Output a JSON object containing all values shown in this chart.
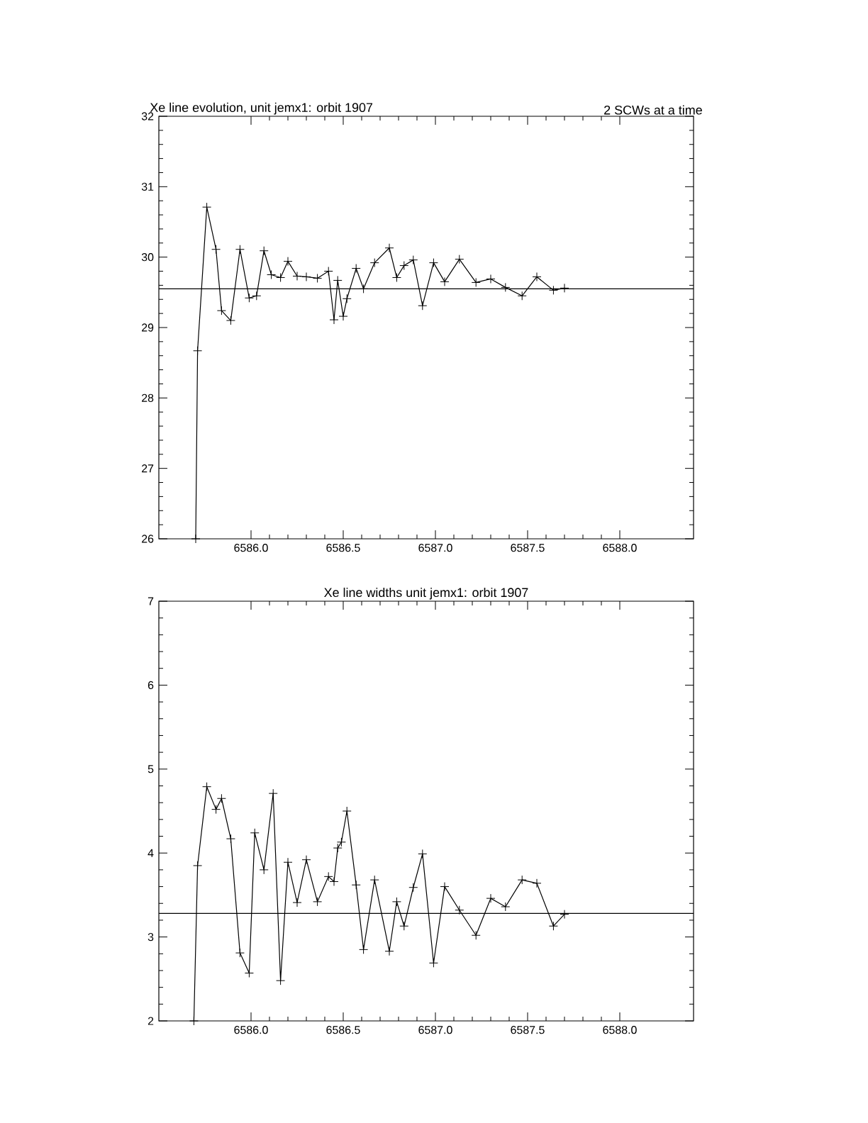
{
  "chart_data": [
    {
      "type": "line",
      "title": "Xe line evolution, unit jemx1: orbit 1907",
      "subtitle": "2 SCWs at a time",
      "marker": "cross",
      "line_style": "solid",
      "color": "#000000",
      "x": [
        6585.7,
        6585.71,
        6585.76,
        6585.81,
        6585.84,
        6585.89,
        6585.94,
        6585.99,
        6586.03,
        6586.07,
        6586.11,
        6586.16,
        6586.2,
        6586.25,
        6586.3,
        6586.36,
        6586.42,
        6586.45,
        6586.47,
        6586.5,
        6586.52,
        6586.57,
        6586.61,
        6586.67,
        6586.75,
        6586.79,
        6586.83,
        6586.88,
        6586.93,
        6586.99,
        6587.05,
        6587.13,
        6587.22,
        6587.3,
        6587.38,
        6587.47,
        6587.55,
        6587.64,
        6587.7
      ],
      "values": [
        26,
        28.67,
        30.71,
        30.11,
        29.24,
        29.1,
        30.11,
        29.42,
        29.45,
        30.09,
        29.75,
        29.71,
        29.94,
        29.73,
        29.72,
        29.7,
        29.8,
        29.11,
        29.67,
        29.16,
        29.41,
        29.84,
        29.55,
        29.92,
        30.13,
        29.71,
        29.88,
        29.96,
        29.31,
        29.92,
        29.65,
        29.97,
        29.64,
        29.69,
        29.57,
        29.45,
        29.72,
        29.53,
        29.56
      ],
      "xlim": [
        6585.5,
        6588.4
      ],
      "ylim": [
        26,
        32
      ],
      "xticks": [
        {
          "value": 6586,
          "label": "6586.0"
        },
        {
          "value": 6586.5,
          "label": "6586.5"
        },
        {
          "value": 6587,
          "label": "6587.0"
        },
        {
          "value": 6587.5,
          "label": "6587.5"
        },
        {
          "value": 6588,
          "label": "6588.0"
        }
      ],
      "yticks": [
        26,
        27,
        28,
        29,
        30,
        31,
        32
      ],
      "ref_lines": [
        {
          "axis": "y",
          "value": 29.55
        }
      ]
    },
    {
      "type": "line",
      "title": "Xe line widths unit jemx1: orbit 1907",
      "marker": "cross",
      "line_style": "solid",
      "color": "#000000",
      "x": [
        6585.69,
        6585.71,
        6585.76,
        6585.81,
        6585.84,
        6585.89,
        6585.94,
        6585.99,
        6586.02,
        6586.07,
        6586.12,
        6586.16,
        6586.2,
        6586.25,
        6586.3,
        6586.36,
        6586.42,
        6586.45,
        6586.47,
        6586.49,
        6586.52,
        6586.57,
        6586.61,
        6586.67,
        6586.75,
        6586.79,
        6586.83,
        6586.88,
        6586.93,
        6586.99,
        6587.05,
        6587.13,
        6587.22,
        6587.3,
        6587.38,
        6587.47,
        6587.55,
        6587.64,
        6587.7
      ],
      "values": [
        2,
        3.85,
        4.79,
        4.52,
        4.65,
        4.17,
        2.81,
        2.57,
        4.24,
        3.8,
        4.71,
        2.48,
        3.89,
        3.41,
        3.92,
        3.42,
        3.72,
        3.66,
        4.06,
        4.13,
        4.5,
        3.62,
        2.85,
        3.68,
        2.83,
        3.42,
        3.13,
        3.59,
        3.99,
        2.69,
        3.6,
        3.32,
        3.02,
        3.46,
        3.36,
        3.68,
        3.64,
        3.13,
        3.27
      ],
      "xlim": [
        6585.5,
        6588.4
      ],
      "ylim": [
        2,
        7
      ],
      "xticks": [
        {
          "value": 6586,
          "label": "6586.0"
        },
        {
          "value": 6586.5,
          "label": "6586.5"
        },
        {
          "value": 6587,
          "label": "6587.0"
        },
        {
          "value": 6587.5,
          "label": "6587.5"
        },
        {
          "value": 6588,
          "label": "6588.0"
        }
      ],
      "yticks": [
        2,
        3,
        4,
        5,
        6,
        7
      ],
      "ref_lines": [
        {
          "axis": "y",
          "value": 3.28
        }
      ]
    }
  ]
}
